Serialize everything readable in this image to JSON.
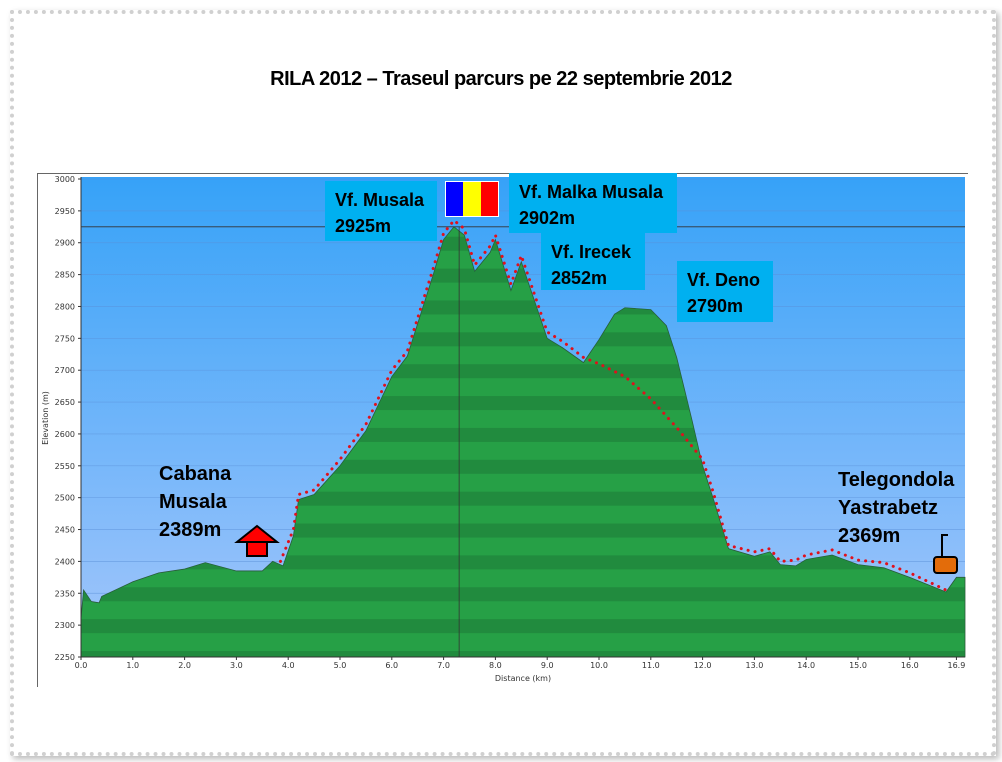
{
  "title": "RILA 2012 – Traseul parcurs pe 22 septembrie 2012",
  "colors": {
    "sky_top": "#36a2f8",
    "sky_bottom": "#9ec3fb",
    "terrain": "#26a046",
    "route": "#e0101c",
    "label_box": "#00b0f0"
  },
  "chart_data": {
    "type": "area",
    "xlabel": "Distance   (km)",
    "ylabel": "Elevation (m)",
    "xlim": [
      0,
      16.9
    ],
    "ylim": [
      2250,
      3000
    ],
    "grid": true,
    "x_ticks": [
      "0.0",
      "1.0",
      "2.0",
      "3.0",
      "4.0",
      "5.0",
      "6.0",
      "7.0",
      "8.0",
      "9.0",
      "10.0",
      "11.0",
      "12.0",
      "13.0",
      "14.0",
      "15.0",
      "16.0",
      "16.9"
    ],
    "y_ticks": [
      "2250",
      "2300",
      "2350",
      "2400",
      "2450",
      "2500",
      "2550",
      "2600",
      "2650",
      "2700",
      "2750",
      "2800",
      "2850",
      "2900",
      "2950",
      "3000"
    ],
    "reference_line_elevation": 2925,
    "cursor_distance": 7.3,
    "terrain": [
      [
        0,
        2310
      ],
      [
        0.05,
        2355
      ],
      [
        0.2,
        2337
      ],
      [
        0.35,
        2335
      ],
      [
        0.4,
        2345
      ],
      [
        1.0,
        2368
      ],
      [
        1.5,
        2382
      ],
      [
        2.0,
        2388
      ],
      [
        2.4,
        2398
      ],
      [
        3.0,
        2385
      ],
      [
        3.5,
        2385
      ],
      [
        3.7,
        2400
      ],
      [
        3.9,
        2393
      ],
      [
        4.1,
        2440
      ],
      [
        4.2,
        2497
      ],
      [
        4.5,
        2505
      ],
      [
        5.0,
        2550
      ],
      [
        5.5,
        2605
      ],
      [
        6.0,
        2690
      ],
      [
        6.3,
        2722
      ],
      [
        6.8,
        2850
      ],
      [
        7.0,
        2905
      ],
      [
        7.2,
        2925
      ],
      [
        7.4,
        2912
      ],
      [
        7.6,
        2855
      ],
      [
        7.9,
        2885
      ],
      [
        8.0,
        2905
      ],
      [
        8.3,
        2825
      ],
      [
        8.5,
        2870
      ],
      [
        9.0,
        2750
      ],
      [
        9.3,
        2735
      ],
      [
        9.7,
        2712
      ],
      [
        10.0,
        2748
      ],
      [
        10.3,
        2788
      ],
      [
        10.5,
        2798
      ],
      [
        11.0,
        2795
      ],
      [
        11.3,
        2770
      ],
      [
        11.5,
        2720
      ],
      [
        11.8,
        2620
      ],
      [
        12.0,
        2550
      ],
      [
        12.2,
        2500
      ],
      [
        12.5,
        2420
      ],
      [
        13.0,
        2408
      ],
      [
        13.3,
        2415
      ],
      [
        13.5,
        2395
      ],
      [
        13.8,
        2393
      ],
      [
        14.0,
        2403
      ],
      [
        14.5,
        2410
      ],
      [
        15.0,
        2395
      ],
      [
        15.5,
        2390
      ],
      [
        16.0,
        2375
      ],
      [
        16.7,
        2352
      ],
      [
        16.9,
        2375
      ]
    ],
    "route": [
      [
        3.85,
        2400
      ],
      [
        4.1,
        2450
      ],
      [
        4.2,
        2505
      ],
      [
        4.5,
        2512
      ],
      [
        5.0,
        2560
      ],
      [
        5.5,
        2615
      ],
      [
        6.0,
        2700
      ],
      [
        6.3,
        2730
      ],
      [
        6.8,
        2860
      ],
      [
        7.0,
        2915
      ],
      [
        7.2,
        2935
      ],
      [
        7.4,
        2922
      ],
      [
        7.6,
        2865
      ],
      [
        7.9,
        2895
      ],
      [
        8.0,
        2912
      ],
      [
        8.3,
        2835
      ],
      [
        8.5,
        2880
      ],
      [
        9.0,
        2760
      ],
      [
        9.3,
        2745
      ],
      [
        9.7,
        2720
      ],
      [
        10.0,
        2710
      ],
      [
        10.5,
        2690
      ],
      [
        11.0,
        2655
      ],
      [
        11.5,
        2610
      ],
      [
        12.0,
        2560
      ],
      [
        12.2,
        2510
      ],
      [
        12.5,
        2425
      ],
      [
        13.0,
        2415
      ],
      [
        13.3,
        2420
      ],
      [
        13.5,
        2400
      ],
      [
        13.8,
        2402
      ],
      [
        14.0,
        2410
      ],
      [
        14.5,
        2418
      ],
      [
        15.0,
        2402
      ],
      [
        15.5,
        2398
      ],
      [
        16.0,
        2382
      ],
      [
        16.7,
        2355
      ]
    ]
  },
  "annotations": {
    "musala": {
      "name": "Vf. Musala",
      "elev": "2925m"
    },
    "malka": {
      "name": "Vf. Malka Musala",
      "elev": "2902m"
    },
    "irecek": {
      "name": "Vf. Irecek",
      "elev": "2852m"
    },
    "deno": {
      "name": "Vf. Deno",
      "elev": "2790m"
    },
    "cabana": {
      "line1": "Cabana",
      "line2": "Musala",
      "elev": "2389m",
      "icon": "hut-icon"
    },
    "telegondola": {
      "line1": "Telegondola",
      "line2": "Yastrabetz",
      "elev": "2369m",
      "icon": "gondola-icon"
    },
    "flag": {
      "icon": "romanian-flag-icon",
      "colors": [
        "#0000ff",
        "#ffff00",
        "#ff0000"
      ]
    }
  }
}
